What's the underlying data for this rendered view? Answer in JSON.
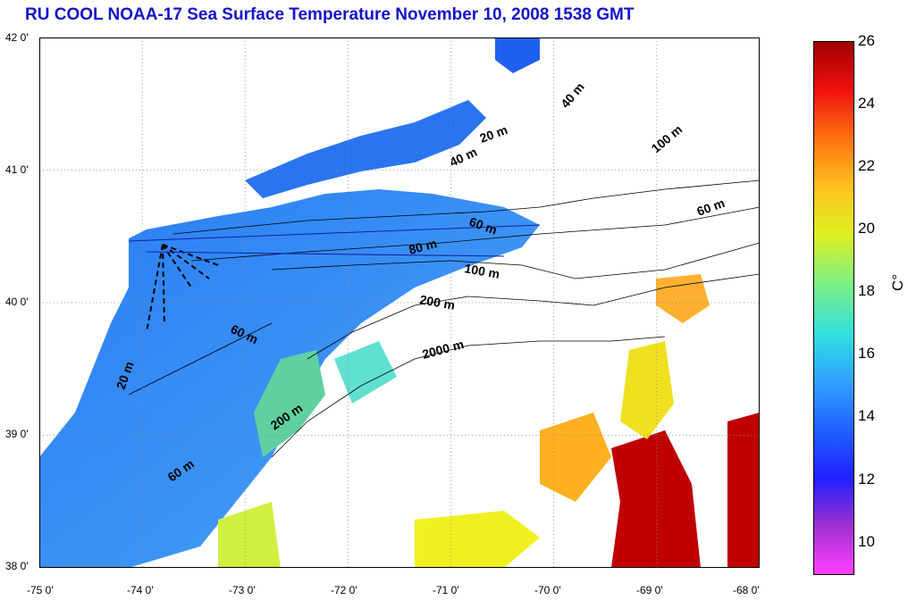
{
  "title": "RU COOL  NOAA-17 Sea Surface Temperature November 10, 2008 1538 GMT",
  "map": {
    "lat_ticks": [
      "42 0'",
      "41 0'",
      "40 0'",
      "39 0'",
      "38 0'"
    ],
    "lon_ticks": [
      "-75 0'",
      "-74 0'",
      "-73 0'",
      "-72 0'",
      "-71 0'",
      "-70 0'",
      "-69 0'",
      "-68 0'"
    ],
    "lat_range": [
      38,
      42
    ],
    "lon_range": [
      -75,
      -68
    ],
    "isobath_labels": [
      "40 m",
      "20 m",
      "40 m",
      "100 m",
      "60 m",
      "60 m",
      "80 m",
      "100 m",
      "200 m",
      "60 m",
      "2000 m",
      "20 m",
      "200 m",
      "60 m"
    ],
    "land_color": "#ffffff",
    "cloud_color": "#ffffff"
  },
  "colorbar": {
    "unit": "C°",
    "ticks": [
      "26",
      "24",
      "22",
      "20",
      "18",
      "16",
      "14",
      "12",
      "10"
    ],
    "range": [
      9,
      26
    ],
    "colors": [
      "#ff40ff",
      "#a030d0",
      "#2020ff",
      "#2060ff",
      "#30a0ff",
      "#30e0e0",
      "#80f080",
      "#e0f020",
      "#ffc020",
      "#ff7010",
      "#f01010",
      "#a00000"
    ]
  }
}
